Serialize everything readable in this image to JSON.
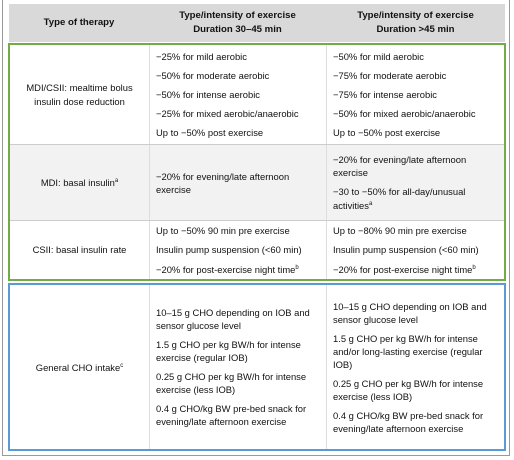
{
  "table": {
    "header": [
      [
        "Type of therapy"
      ],
      [
        "Type/intensity of exercise",
        "Duration 30–45 min"
      ],
      [
        "Type/intensity of exercise",
        "Duration >45 min"
      ]
    ],
    "groups": [
      {
        "rows": [
          {
            "therapy": {
              "text": "MDI/CSII: mealtime bolus insulin dose reduction"
            },
            "short": [
              {
                "text": "−25% for mild aerobic"
              },
              {
                "text": "−50% for moderate aerobic"
              },
              {
                "text": "−50% for intense aerobic"
              },
              {
                "text": "−25% for mixed aerobic/anaerobic"
              },
              {
                "text": "Up to −50% post exercise"
              }
            ],
            "long": [
              {
                "text": "−50% for mild aerobic"
              },
              {
                "text": "−75% for moderate aerobic"
              },
              {
                "text": "−75% for intense aerobic"
              },
              {
                "text": "−50% for mixed aerobic/anaerobic"
              },
              {
                "text": "Up to −50% post exercise"
              }
            ]
          },
          {
            "therapy": {
              "text": "MDI: basal insulin",
              "sup": "a"
            },
            "short": [
              {
                "text": "−20% for evening/late afternoon exercise"
              }
            ],
            "long": [
              {
                "text": "−20% for evening/late afternoon exercise"
              },
              {
                "text": "−30 to −50% for all-day/unusual activities",
                "sup": "a"
              }
            ]
          },
          {
            "therapy": {
              "text": "CSII: basal insulin rate"
            },
            "short": [
              {
                "text": "Up to −50% 90 min pre exercise"
              },
              {
                "text": "Insulin pump suspension (<60 min)"
              },
              {
                "text": "−20% for post-exercise night time",
                "sup": "b"
              }
            ],
            "long": [
              {
                "text": "Up to −80% 90 min pre exercise"
              },
              {
                "text": "Insulin pump suspension (<60 min)"
              },
              {
                "text": "−20% for post-exercise night time",
                "sup": "b"
              }
            ]
          }
        ]
      },
      {
        "rows": [
          {
            "therapy": {
              "text": "General CHO intake",
              "sup": "c"
            },
            "short": [
              {
                "text": "10–15 g CHO depending on IOB and sensor glucose level"
              },
              {
                "text": "1.5 g CHO per kg BW/h for intense exercise (regular IOB)"
              },
              {
                "text": "0.25 g CHO per kg BW/h for intense exercise (less IOB)"
              },
              {
                "text": "0.4 g CHO/kg BW pre-bed snack for evening/late afternoon exercise"
              }
            ],
            "long": [
              {
                "text": "10–15 g CHO depending on IOB and sensor glucose level"
              },
              {
                "text": "1.5 g CHO per kg BW/h for intense and/or long-lasting exercise (regular IOB)"
              },
              {
                "text": "0.25 g CHO per kg BW/h for intense exercise (less IOB)"
              },
              {
                "text": "0.4 g CHO/kg BW pre-bed snack for evening/late afternoon exercise"
              }
            ]
          }
        ]
      }
    ]
  }
}
